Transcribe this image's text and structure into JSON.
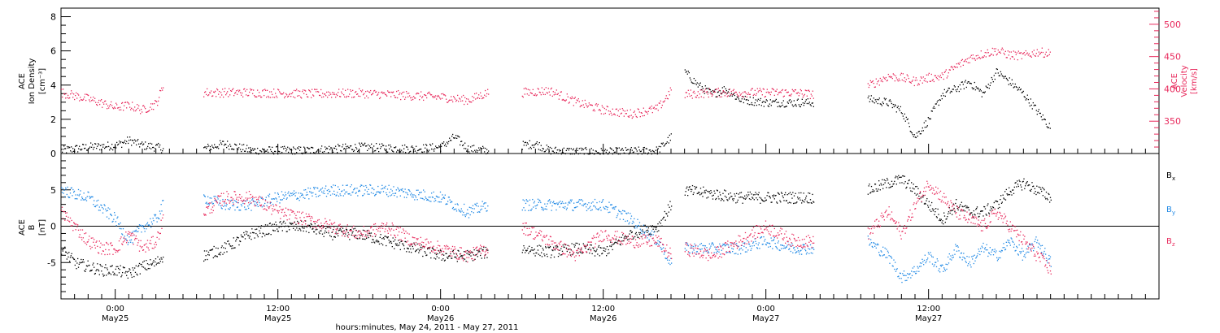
{
  "colors": {
    "black": "#000000",
    "pink": "#e8295c",
    "blue": "#1e88e5"
  },
  "chart_data": [
    {
      "type": "scatter",
      "panel": "top",
      "left_axis": {
        "label_lines": [
          "ACE",
          "Ion Density"
        ],
        "unit": "[cm⁻³]",
        "ylim": [
          0,
          8.5
        ],
        "ticks": [
          "0",
          "2",
          "4",
          "6",
          "8"
        ],
        "tick_values": [
          0,
          2,
          4,
          6,
          8
        ]
      },
      "right_axis": {
        "label_lines": [
          "ACE",
          "Velocity"
        ],
        "unit": "[km/s]",
        "ylim": [
          300,
          525
        ],
        "ticks": [
          "350",
          "400",
          "450",
          "500"
        ],
        "tick_values": [
          350,
          400,
          450,
          500
        ]
      },
      "xlim_hours": [
        0,
        81
      ],
      "segments": [
        [
          0,
          7.5
        ],
        [
          10.5,
          31.5
        ],
        [
          34,
          45
        ],
        [
          46,
          55.5
        ],
        [
          59.5,
          73
        ]
      ],
      "series": [
        {
          "axis": "left",
          "color": "black",
          "points": [
            [
              0,
              0.2
            ],
            [
              2,
              0.4
            ],
            [
              4,
              0.5
            ],
            [
              5,
              0.8
            ],
            [
              6,
              0.5
            ],
            [
              7,
              0.4
            ],
            [
              7.5,
              0.3
            ],
            [
              10.5,
              0.3
            ],
            [
              12,
              0.6
            ],
            [
              14,
              0.2
            ],
            [
              18,
              0.2
            ],
            [
              22,
              0.4
            ],
            [
              26,
              0.3
            ],
            [
              28,
              0.4
            ],
            [
              29,
              1.0
            ],
            [
              30,
              0.3
            ],
            [
              31.5,
              0.2
            ],
            [
              34,
              0.5
            ],
            [
              35,
              0.6
            ],
            [
              36,
              0.2
            ],
            [
              40,
              0.1
            ],
            [
              44,
              0.2
            ],
            [
              45,
              1.0
            ],
            [
              46,
              4.8
            ],
            [
              47,
              4.0
            ],
            [
              48,
              3.5
            ],
            [
              49,
              3.8
            ],
            [
              50,
              3.2
            ],
            [
              52,
              3.0
            ],
            [
              54,
              3.0
            ],
            [
              55.5,
              3.0
            ],
            [
              59.5,
              3.2
            ],
            [
              61,
              3.0
            ],
            [
              62,
              2.5
            ],
            [
              63,
              1.0
            ],
            [
              64,
              2.0
            ],
            [
              65,
              3.5
            ],
            [
              66,
              3.8
            ],
            [
              67,
              4.2
            ],
            [
              68,
              3.5
            ],
            [
              69,
              4.8
            ],
            [
              70,
              4.2
            ],
            [
              71,
              3.5
            ],
            [
              72,
              2.5
            ],
            [
              73,
              1.5
            ]
          ]
        },
        {
          "axis": "right",
          "color": "pink",
          "points": [
            [
              0,
              395
            ],
            [
              2,
              385
            ],
            [
              4,
              372
            ],
            [
              5,
              375
            ],
            [
              6,
              368
            ],
            [
              7,
              378
            ],
            [
              7.5,
              405
            ],
            [
              10.5,
              395
            ],
            [
              14,
              395
            ],
            [
              18,
              393
            ],
            [
              22,
              394
            ],
            [
              26,
              390
            ],
            [
              28,
              388
            ],
            [
              30,
              383
            ],
            [
              31.5,
              395
            ],
            [
              34,
              395
            ],
            [
              36,
              398
            ],
            [
              38,
              380
            ],
            [
              40,
              368
            ],
            [
              42,
              362
            ],
            [
              44,
              370
            ],
            [
              45,
              398
            ],
            [
              46,
              392
            ],
            [
              48,
              395
            ],
            [
              50,
              395
            ],
            [
              52,
              395
            ],
            [
              54,
              395
            ],
            [
              55.5,
              392
            ],
            [
              59.5,
              405
            ],
            [
              61,
              420
            ],
            [
              62,
              418
            ],
            [
              63,
              412
            ],
            [
              64,
              418
            ],
            [
              65,
              420
            ],
            [
              66,
              435
            ],
            [
              67,
              448
            ],
            [
              68,
              455
            ],
            [
              69,
              460
            ],
            [
              70,
              453
            ],
            [
              71,
              452
            ],
            [
              72,
              458
            ],
            [
              73,
              455
            ]
          ]
        }
      ]
    },
    {
      "type": "scatter",
      "panel": "bottom",
      "left_axis": {
        "label_lines": [
          "ACE",
          "B"
        ],
        "unit": "[nT]",
        "ylim": [
          -10,
          10
        ],
        "ticks": [
          "-5",
          "0",
          "5"
        ],
        "tick_values": [
          -5,
          0,
          5
        ]
      },
      "zero_line": true,
      "legend": {
        "placement": "right",
        "entries": [
          {
            "label": "B",
            "sub": "x",
            "color": "black"
          },
          {
            "label": "B",
            "sub": "y",
            "color": "blue"
          },
          {
            "label": "B",
            "sub": "z",
            "color": "pink"
          }
        ]
      },
      "xlim_hours": [
        0,
        81
      ],
      "series": [
        {
          "name": "Bx",
          "color": "black",
          "points": [
            [
              0,
              -3
            ],
            [
              1,
              -5
            ],
            [
              2,
              -5.5
            ],
            [
              3,
              -6
            ],
            [
              4,
              -6
            ],
            [
              5,
              -6.5
            ],
            [
              6,
              -5.5
            ],
            [
              7,
              -5
            ],
            [
              7.5,
              -4
            ],
            [
              10.5,
              -4
            ],
            [
              12,
              -3
            ],
            [
              14,
              -1
            ],
            [
              16,
              0
            ],
            [
              18,
              0
            ],
            [
              20,
              -1
            ],
            [
              22,
              -1
            ],
            [
              24,
              -2
            ],
            [
              26,
              -3
            ],
            [
              28,
              -4
            ],
            [
              30,
              -4
            ],
            [
              31.5,
              -3.5
            ],
            [
              34,
              -3
            ],
            [
              36,
              -3.5
            ],
            [
              38,
              -3
            ],
            [
              40,
              -3.5
            ],
            [
              42,
              -1
            ],
            [
              44,
              0
            ],
            [
              45,
              3
            ],
            [
              46,
              5
            ],
            [
              48,
              4.5
            ],
            [
              50,
              4
            ],
            [
              52,
              4
            ],
            [
              54,
              4
            ],
            [
              55.5,
              4
            ],
            [
              59.5,
              5
            ],
            [
              61,
              6
            ],
            [
              62,
              6.5
            ],
            [
              63,
              5
            ],
            [
              64,
              3
            ],
            [
              65,
              1
            ],
            [
              66,
              3
            ],
            [
              67,
              2
            ],
            [
              68,
              2
            ],
            [
              69,
              3
            ],
            [
              70,
              5
            ],
            [
              71,
              6
            ],
            [
              72,
              5
            ],
            [
              73,
              4
            ]
          ]
        },
        {
          "name": "By",
          "color": "blue",
          "points": [
            [
              0,
              5
            ],
            [
              1,
              4.5
            ],
            [
              2,
              4
            ],
            [
              3,
              2.5
            ],
            [
              4,
              1
            ],
            [
              5,
              -2
            ],
            [
              6,
              0
            ],
            [
              7,
              1
            ],
            [
              7.5,
              3
            ],
            [
              10.5,
              4
            ],
            [
              12,
              3
            ],
            [
              14,
              3
            ],
            [
              16,
              4
            ],
            [
              18,
              4.5
            ],
            [
              20,
              5
            ],
            [
              22,
              5
            ],
            [
              24,
              5
            ],
            [
              26,
              4.5
            ],
            [
              28,
              4
            ],
            [
              30,
              2
            ],
            [
              31.5,
              3
            ],
            [
              34,
              3
            ],
            [
              36,
              3
            ],
            [
              38,
              3
            ],
            [
              40,
              3
            ],
            [
              42,
              1
            ],
            [
              44,
              -2
            ],
            [
              45,
              -5
            ],
            [
              46,
              -3
            ],
            [
              48,
              -3
            ],
            [
              50,
              -3
            ],
            [
              52,
              -2
            ],
            [
              54,
              -3
            ],
            [
              55.5,
              -3
            ],
            [
              59.5,
              -2
            ],
            [
              61,
              -4
            ],
            [
              62,
              -7
            ],
            [
              63,
              -6
            ],
            [
              64,
              -4
            ],
            [
              65,
              -6
            ],
            [
              66,
              -3
            ],
            [
              67,
              -5
            ],
            [
              68,
              -3
            ],
            [
              69,
              -4
            ],
            [
              70,
              -2
            ],
            [
              71,
              -4
            ],
            [
              72,
              -2
            ],
            [
              73,
              -5
            ]
          ]
        },
        {
          "name": "Bz",
          "color": "pink",
          "points": [
            [
              0,
              2
            ],
            [
              1,
              0
            ],
            [
              2,
              -2
            ],
            [
              3,
              -3
            ],
            [
              4,
              -3
            ],
            [
              5,
              -1
            ],
            [
              6,
              -3
            ],
            [
              7,
              -2
            ],
            [
              7.5,
              1
            ],
            [
              10.5,
              2
            ],
            [
              12,
              4
            ],
            [
              14,
              4
            ],
            [
              16,
              2
            ],
            [
              18,
              1
            ],
            [
              20,
              0
            ],
            [
              22,
              -1
            ],
            [
              24,
              0
            ],
            [
              26,
              -2
            ],
            [
              28,
              -3
            ],
            [
              30,
              -4
            ],
            [
              31.5,
              -3
            ],
            [
              34,
              0
            ],
            [
              36,
              -2
            ],
            [
              38,
              -4
            ],
            [
              40,
              -1
            ],
            [
              42,
              -2
            ],
            [
              44,
              -2
            ],
            [
              45,
              -4
            ],
            [
              46,
              -3
            ],
            [
              48,
              -4
            ],
            [
              50,
              -2
            ],
            [
              52,
              0
            ],
            [
              54,
              -2
            ],
            [
              55.5,
              -2
            ],
            [
              59.5,
              -1
            ],
            [
              61,
              2
            ],
            [
              62,
              -1
            ],
            [
              63,
              3
            ],
            [
              64,
              6
            ],
            [
              65,
              4
            ],
            [
              66,
              2
            ],
            [
              67,
              1
            ],
            [
              68,
              0
            ],
            [
              69,
              2
            ],
            [
              70,
              0
            ],
            [
              71,
              -2
            ],
            [
              72,
              -4
            ],
            [
              73,
              -6
            ]
          ]
        }
      ]
    }
  ],
  "x_axis": {
    "ticks": [
      {
        "hour": 4,
        "time": "0:00",
        "date": "May25"
      },
      {
        "hour": 16,
        "time": "12:00",
        "date": "May25"
      },
      {
        "hour": 28,
        "time": "0:00",
        "date": "May26"
      },
      {
        "hour": 40,
        "time": "12:00",
        "date": "May26"
      },
      {
        "hour": 52,
        "time": "0:00",
        "date": "May27"
      },
      {
        "hour": 64,
        "time": "12:00",
        "date": "May27"
      }
    ],
    "label": "hours:minutes, May 24, 2011 - May 27, 2011"
  }
}
